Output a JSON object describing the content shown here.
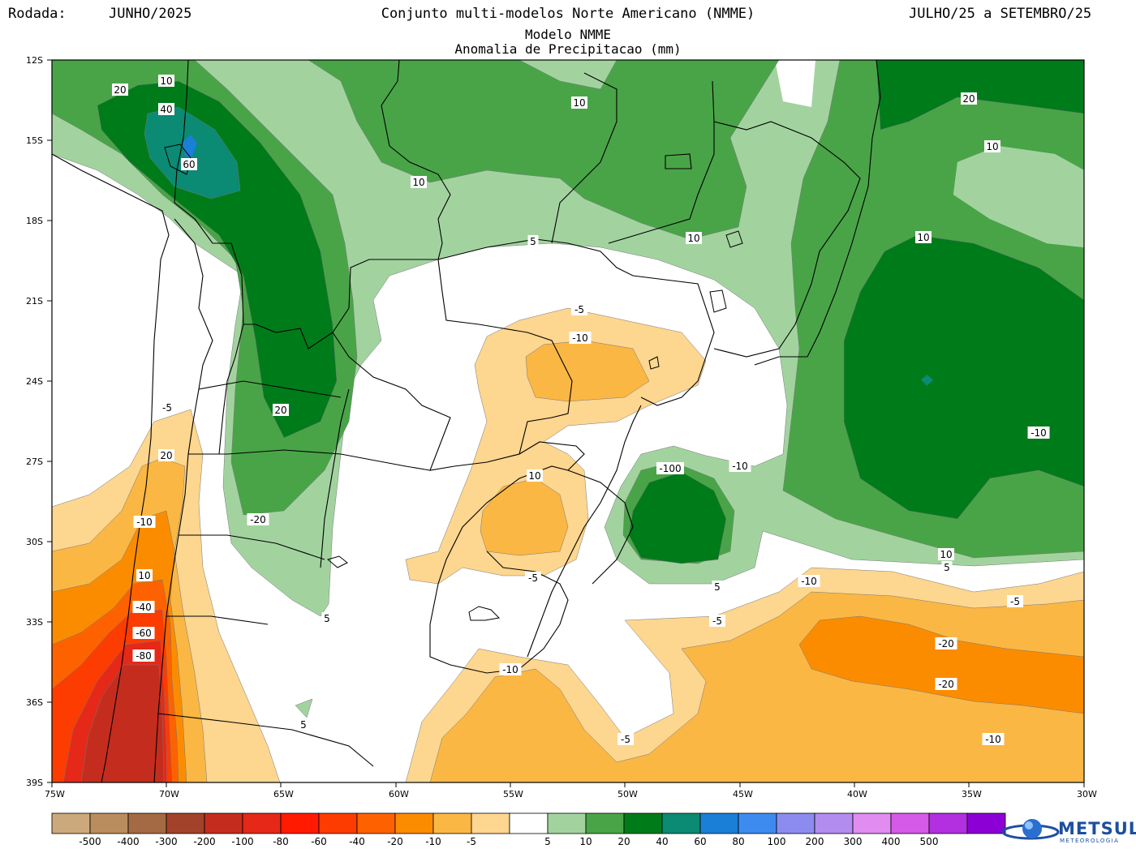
{
  "header": {
    "run_label": "Rodada:",
    "run_value": "JUNHO/2025",
    "title": "Conjunto multi-modelos Norte Americano (NMME)",
    "model": "Modelo NMME",
    "variable": "Anomalia de Precipitacao (mm)",
    "period": "JULHO/25 a SETEMBRO/25"
  },
  "map": {
    "lat_ticks": [
      "12S",
      "15S",
      "18S",
      "21S",
      "24S",
      "27S",
      "30S",
      "33S",
      "36S",
      "39S"
    ],
    "lon_ticks": [
      "75W",
      "70W",
      "65W",
      "60W",
      "55W",
      "50W",
      "45W",
      "40W",
      "35W",
      "30W"
    ],
    "contour_labels": [
      "20",
      "10",
      "40",
      "60",
      "10",
      "10",
      "10",
      "20",
      "10",
      "5",
      "10",
      "20",
      "-5",
      "-10",
      "-5",
      "-10",
      "20",
      "-10",
      "-20",
      "10",
      "-40",
      "-60",
      "-80",
      "-100",
      "10",
      "-10",
      "5",
      "5",
      "-5",
      "10",
      "5",
      "-10",
      "5",
      "-5",
      "-10",
      "-20",
      "-20",
      "-5",
      "-5",
      "-10",
      "5"
    ]
  },
  "legend": {
    "colors": [
      "#cca97c",
      "#b98d5e",
      "#a46a43",
      "#a3422a",
      "#c42d1e",
      "#e52818",
      "#ff1a00",
      "#fc3c00",
      "#fe6200",
      "#fb8c00",
      "#fbb744",
      "#fdd68f",
      "#ffffff",
      "#a2d39f",
      "#49a448",
      "#007b1a",
      "#0b8a74",
      "#1a7fd6",
      "#3e8bf0",
      "#8c8cf0",
      "#b38cf0",
      "#e08cf0",
      "#d65ae8",
      "#b230e0",
      "#8c00d6"
    ],
    "labels": [
      "-500",
      "-400",
      "-300",
      "-200",
      "-100",
      "-80",
      "-60",
      "-40",
      "-20",
      "-10",
      "-5",
      "5",
      "10",
      "20",
      "40",
      "60",
      "80",
      "100",
      "200",
      "300",
      "400",
      "500"
    ]
  },
  "logo": {
    "name": "METSUL",
    "sub": "METEOROLOGIA"
  }
}
